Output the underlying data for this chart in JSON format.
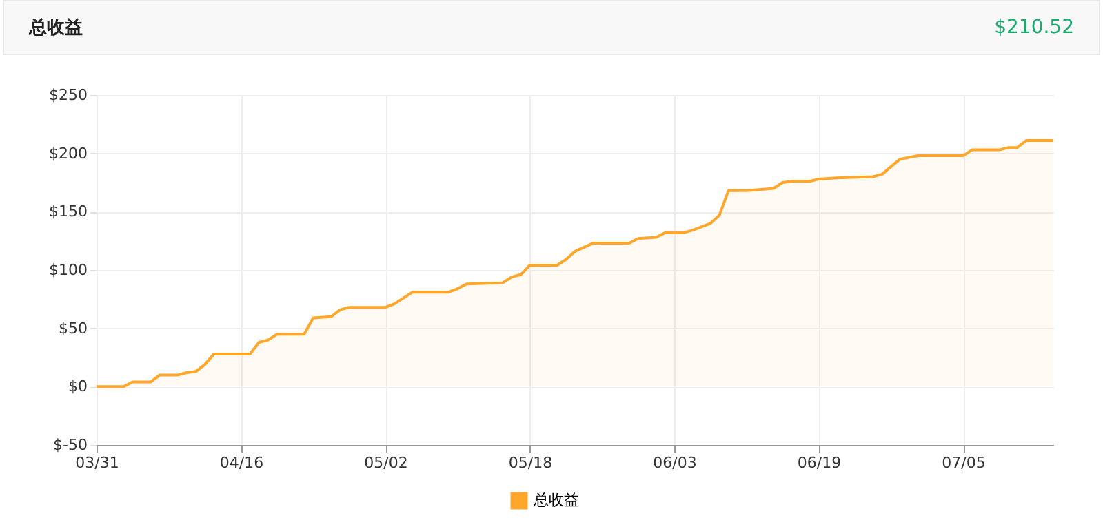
{
  "chart_data": {
    "type": "area",
    "title": "总收益",
    "annotations": [
      "$210.52"
    ],
    "x": [
      "--03-31",
      "--04-03",
      "--04-04",
      "--04-06",
      "--04-07",
      "--04-09",
      "--04-10",
      "--04-11",
      "--04-12",
      "--04-13",
      "--04-17",
      "--04-18",
      "--04-19",
      "--04-20",
      "--04-23",
      "--04-24",
      "--04-26",
      "--04-27",
      "--04-28",
      "--05-02",
      "--05-03",
      "--05-05",
      "--05-09",
      "--05-10",
      "--05-11",
      "--05-15",
      "--05-16",
      "--05-17",
      "--05-18",
      "--05-21",
      "--05-22",
      "--05-23",
      "--05-25",
      "--05-29",
      "--05-30",
      "--06-01",
      "--06-02",
      "--06-04",
      "--06-05",
      "--06-07",
      "--06-08",
      "--06-09",
      "--06-11",
      "--06-14",
      "--06-15",
      "--06-16",
      "--06-18",
      "--06-19",
      "--06-21",
      "--06-25",
      "--06-26",
      "--06-28",
      "--06-30",
      "--07-05",
      "--07-06",
      "--07-09",
      "--07-10",
      "--07-11",
      "--07-12",
      "--07-15"
    ],
    "series": [
      {
        "name": "总收益",
        "color": "#ffa62b",
        "values": [
          0,
          0,
          4,
          4,
          10,
          10,
          12,
          13,
          19,
          28,
          28,
          38,
          40,
          45,
          45,
          59,
          60,
          66,
          68,
          68,
          71,
          81,
          81,
          84,
          88,
          89,
          94,
          96,
          104,
          104,
          109,
          116,
          123,
          123,
          127,
          128,
          132,
          132,
          134,
          140,
          147,
          168,
          168,
          170,
          175,
          176,
          176,
          178,
          179,
          180,
          182,
          195,
          198,
          198,
          203,
          203,
          205,
          205,
          211,
          211
        ]
      }
    ],
    "xlim": [
      "--03-31",
      "--07-15"
    ],
    "xticks": [
      {
        "value": "--03-31",
        "label": "03/31"
      },
      {
        "value": "--04-16",
        "label": "04/16"
      },
      {
        "value": "--05-02",
        "label": "05/02"
      },
      {
        "value": "--05-18",
        "label": "05/18"
      },
      {
        "value": "--06-03",
        "label": "06/03"
      },
      {
        "value": "--06-19",
        "label": "06/19"
      },
      {
        "value": "--07-05",
        "label": "07/05"
      }
    ],
    "ylim": [
      -50,
      250
    ],
    "yticks": [
      {
        "value": -50,
        "label": "$-50"
      },
      {
        "value": 0,
        "label": "$0"
      },
      {
        "value": 50,
        "label": "$50"
      },
      {
        "value": 100,
        "label": "$100"
      },
      {
        "value": 150,
        "label": "$150"
      },
      {
        "value": 200,
        "label": "$200"
      },
      {
        "value": 250,
        "label": "$250"
      }
    ],
    "grid": true,
    "legend": "bottom"
  }
}
